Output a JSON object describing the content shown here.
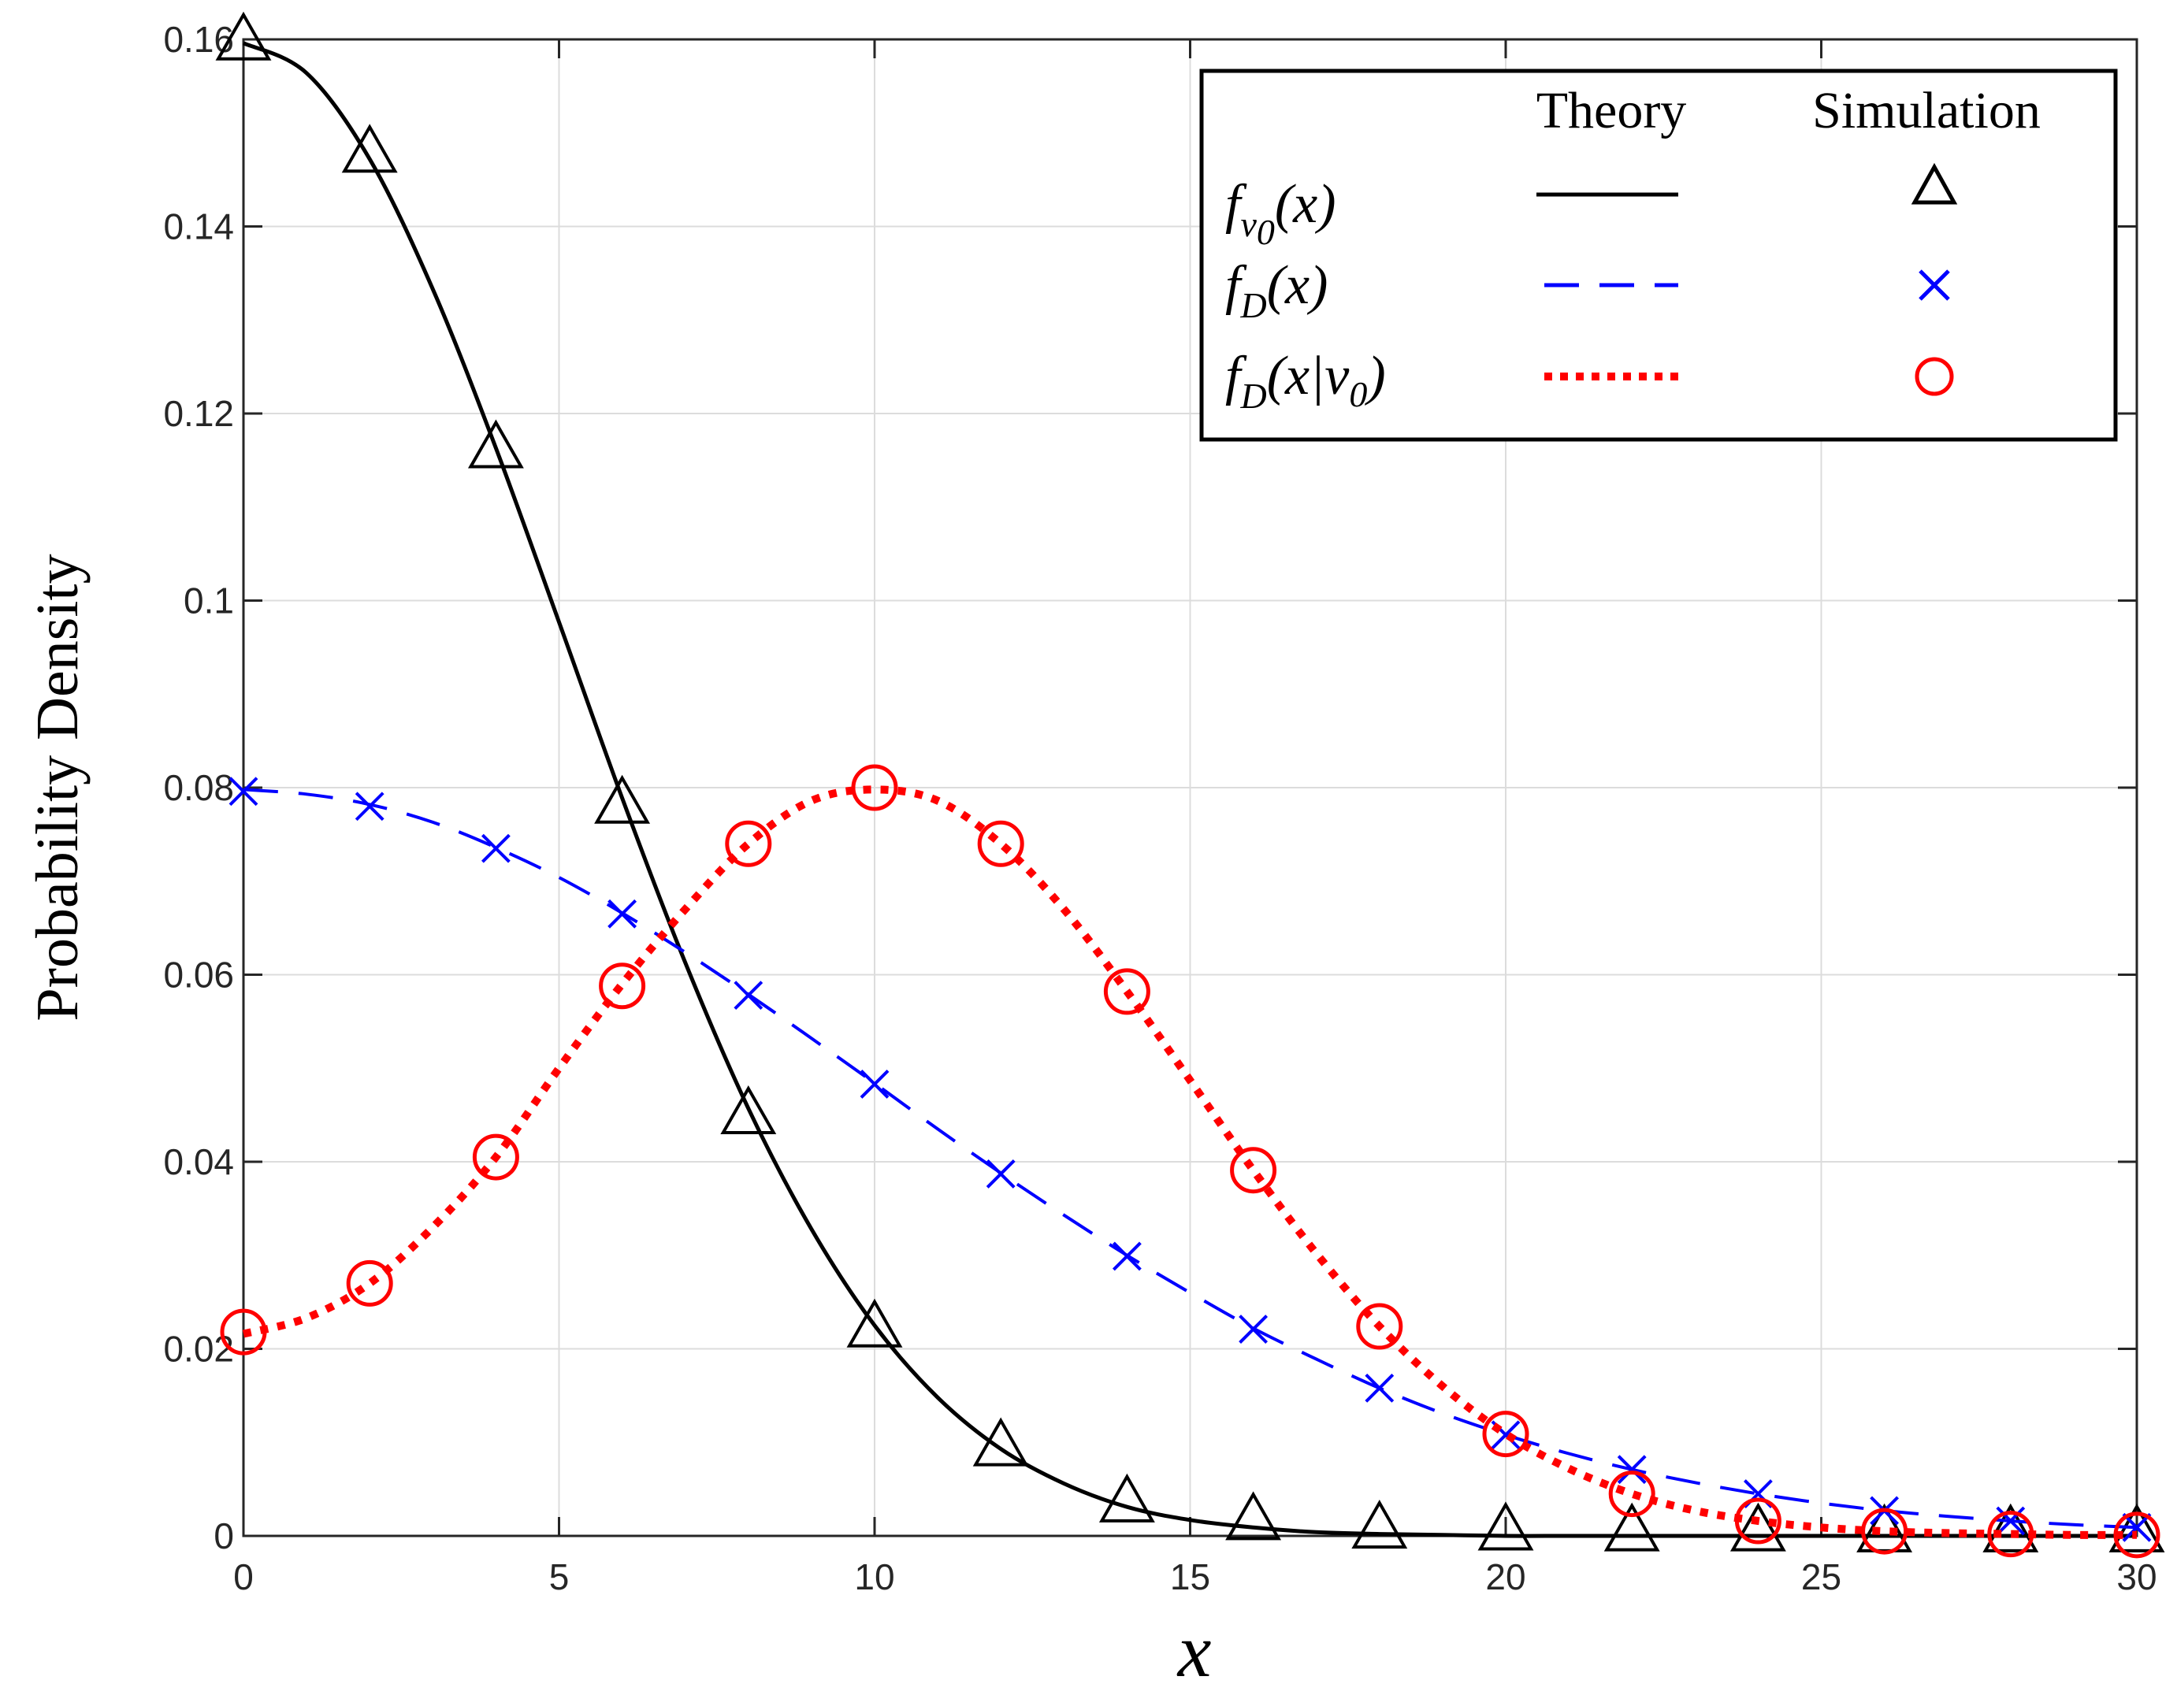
{
  "chart_data": {
    "type": "line",
    "title": "",
    "xlabel": "x",
    "ylabel": "Probability Density",
    "xlim": [
      0,
      30
    ],
    "ylim": [
      0,
      0.16
    ],
    "xticks": [
      0,
      5,
      10,
      15,
      20,
      25,
      30
    ],
    "xtick_labels": [
      "0",
      "5",
      "10",
      "15",
      "20",
      "25",
      "30"
    ],
    "yticks": [
      0,
      0.02,
      0.04,
      0.06,
      0.08,
      0.1,
      0.12,
      0.14,
      0.16
    ],
    "ytick_labels": [
      "0",
      "0.02",
      "0.04",
      "0.06",
      "0.08",
      "0.1",
      "0.12",
      "0.14",
      "0.16"
    ],
    "grid": true,
    "legend_position": "top-right",
    "legend_headers": {
      "theory": "Theory",
      "simulation": "Simulation"
    },
    "series": [
      {
        "name": "f_v0(x)",
        "legend_main": "f",
        "legend_sub": "v",
        "legend_subsub": "0",
        "legend_tail": "(x)",
        "color": "#000000",
        "line_style": "solid",
        "marker": "triangle",
        "theory_x": [
          0,
          1,
          2,
          3,
          4,
          5,
          6,
          7,
          8,
          9,
          10,
          11,
          12,
          13,
          14,
          15,
          16,
          17,
          18,
          19,
          20,
          21,
          22,
          23,
          24,
          25,
          26,
          27,
          28,
          29,
          30
        ],
        "theory_y": [
          0.1596,
          0.1564,
          0.1472,
          0.1333,
          0.1163,
          0.0977,
          0.0789,
          0.0613,
          0.0457,
          0.0328,
          0.0225,
          0.0148,
          0.0093,
          0.0056,
          0.0031,
          0.0017,
          0.0009,
          0.0004,
          0.0002,
          0.0001,
          0,
          0,
          0,
          0,
          0,
          0,
          0,
          0,
          0,
          0,
          0
        ],
        "sim_x": [
          0,
          2,
          4,
          6,
          8,
          10,
          12,
          14,
          16,
          18,
          20,
          22,
          24,
          26,
          28,
          30
        ],
        "sim_y": [
          0.1596,
          0.1476,
          0.116,
          0.078,
          0.0448,
          0.022,
          0.0093,
          0.0033,
          0.0014,
          0.0005,
          0.0003,
          0.0002,
          0.0002,
          0.0001,
          0.0001,
          0.0001
        ]
      },
      {
        "name": "f_D(x)",
        "legend_main": "f",
        "legend_sub": "D",
        "legend_subsub": "",
        "legend_tail": "(x)",
        "color": "#0000ff",
        "line_style": "dashed",
        "marker": "x",
        "theory_x": [
          0,
          1,
          2,
          3,
          4,
          5,
          6,
          7,
          8,
          9,
          10,
          11,
          12,
          13,
          14,
          15,
          16,
          17,
          18,
          19,
          20,
          21,
          22,
          23,
          24,
          25,
          26,
          27,
          28,
          29,
          30
        ],
        "theory_y": [
          0.0798,
          0.0793,
          0.0782,
          0.0763,
          0.0736,
          0.0704,
          0.0666,
          0.0624,
          0.0579,
          0.0532,
          0.0484,
          0.0435,
          0.0388,
          0.0343,
          0.03,
          0.026,
          0.0222,
          0.0189,
          0.0158,
          0.0131,
          0.0108,
          0.0088,
          0.0071,
          0.0057,
          0.0045,
          0.0035,
          0.0027,
          0.0021,
          0.0016,
          0.0012,
          0.0009
        ],
        "sim_x": [
          0,
          2,
          4,
          6,
          8,
          10,
          12,
          14,
          16,
          18,
          20,
          22,
          24,
          26,
          28,
          30
        ],
        "sim_y": [
          0.0796,
          0.078,
          0.0735,
          0.0665,
          0.0578,
          0.0483,
          0.0387,
          0.0299,
          0.0221,
          0.0158,
          0.0108,
          0.0071,
          0.0045,
          0.0027,
          0.0016,
          0.0009
        ]
      },
      {
        "name": "f_D(x|v0)",
        "legend_main": "f",
        "legend_sub": "D",
        "legend_subsub": "",
        "legend_tail": "(x|v",
        "legend_tail_sub": "0",
        "legend_tail_end": ")",
        "color": "#ff0000",
        "line_style": "dotted",
        "marker": "circle",
        "theory_x": [
          0,
          1,
          2,
          3,
          4,
          5,
          6,
          7,
          8,
          9,
          10,
          11,
          12,
          13,
          14,
          15,
          16,
          17,
          18,
          19,
          20,
          21,
          22,
          23,
          24,
          25,
          26,
          27,
          28,
          29,
          30
        ],
        "theory_y": [
          0.0216,
          0.0233,
          0.027,
          0.033,
          0.0405,
          0.05,
          0.059,
          0.067,
          0.074,
          0.0786,
          0.0798,
          0.0786,
          0.074,
          0.067,
          0.0582,
          0.0487,
          0.0391,
          0.0302,
          0.0224,
          0.016,
          0.0109,
          0.0072,
          0.0045,
          0.0027,
          0.0016,
          0.0009,
          0.0005,
          0.0003,
          0.0002,
          0.0001,
          0.0001
        ],
        "sim_x": [
          0,
          2,
          4,
          6,
          8,
          10,
          12,
          14,
          16,
          18,
          20,
          22,
          24,
          26,
          28,
          30
        ],
        "sim_y": [
          0.0218,
          0.027,
          0.0405,
          0.0588,
          0.074,
          0.08,
          0.074,
          0.0582,
          0.0391,
          0.0224,
          0.0109,
          0.0045,
          0.0016,
          0.0005,
          0.0002,
          0.0001
        ]
      }
    ]
  }
}
